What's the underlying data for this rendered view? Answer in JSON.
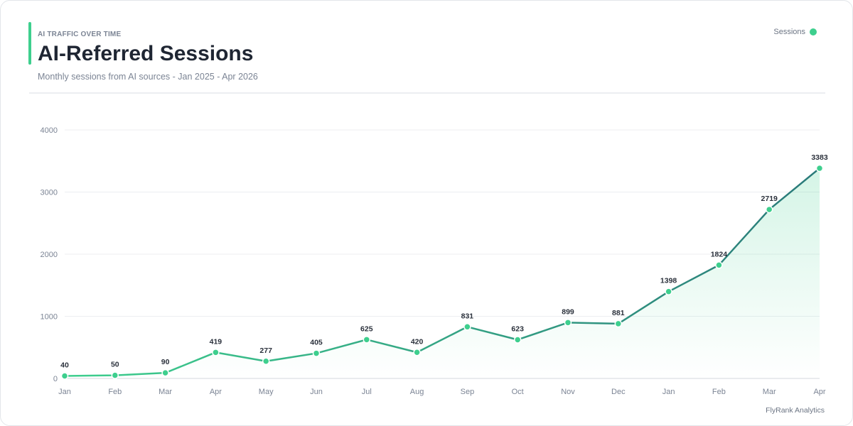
{
  "header": {
    "kicker": "AI TRAFFIC OVER TIME",
    "title": "AI-Referred Sessions",
    "subtitle": "Monthly sessions from AI sources - Jan 2025 - Apr 2026"
  },
  "footer": {
    "brand": "FlyRank Analytics"
  },
  "colors": {
    "accent": "#3ecf8e",
    "line_end": "#2a7a7a",
    "grid": "#eceef1",
    "axis": "#d3d7dd"
  },
  "chart_data": {
    "type": "line",
    "categories": [
      "Jan",
      "Feb",
      "Mar",
      "Apr",
      "May",
      "Jun",
      "Jul",
      "Aug",
      "Sep",
      "Oct",
      "Nov",
      "Dec",
      "Jan",
      "Feb",
      "Mar",
      "Apr"
    ],
    "series": [
      {
        "name": "Sessions",
        "values": [
          40,
          50,
          90,
          419,
          277,
          405,
          625,
          420,
          831,
          623,
          899,
          881,
          1398,
          1824,
          2719,
          3383
        ]
      }
    ],
    "ylim": [
      0,
      4000
    ],
    "yticks": [
      0,
      1000,
      2000,
      3000,
      4000
    ],
    "grid": true,
    "legend": "top-right",
    "area_fill": true,
    "data_labels": true
  }
}
